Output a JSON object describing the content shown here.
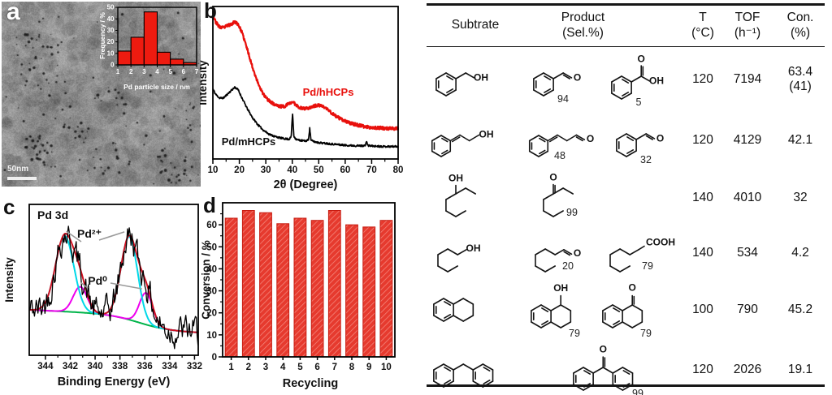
{
  "panels": {
    "a": "a",
    "b": "b",
    "c": "c",
    "d": "d",
    "scale_bar": "50nm"
  },
  "chart_data": [
    {
      "id": "pd-particle-size-distribution",
      "type": "bar",
      "location": "inset of panel a",
      "xlabel": "Pd particle size / nm",
      "ylabel": "Frequency / %",
      "bins": [
        "1-2",
        "2-3",
        "3-4",
        "4-5",
        "5-6",
        "6-7"
      ],
      "values": [
        12,
        24,
        46,
        11,
        5,
        2
      ],
      "xticks": [
        1,
        2,
        3,
        4,
        5,
        6,
        7
      ],
      "yticks": [
        0,
        10,
        20,
        30,
        40,
        50
      ],
      "ylim": [
        0,
        50
      ],
      "bar_color": "#ee1b10"
    },
    {
      "id": "xrd-patterns",
      "type": "line",
      "xlabel": "2θ (Degree)",
      "ylabel": "Intensity",
      "xlim": [
        10,
        80
      ],
      "xticks": [
        10,
        20,
        30,
        40,
        50,
        60,
        70,
        80
      ],
      "series": [
        {
          "name": "Pd/hHCPs",
          "color": "#e8100c",
          "features": "broad hump ~19°, weak broad Pd peaks ~40° and ~47-52°"
        },
        {
          "name": "Pd/mHCPs",
          "color": "#000000",
          "features": "broad hump ~19°, sharp peaks at 40.1°, 46.6°, 68.1°"
        }
      ]
    },
    {
      "id": "xps-pd3d",
      "type": "line",
      "title": "Pd 3d",
      "xlabel": "Binding Energy (eV)",
      "ylabel": "Intensity",
      "x_reversed": true,
      "xlim": [
        345.3,
        331.7
      ],
      "xticks": [
        344,
        342,
        340,
        338,
        336,
        334,
        332
      ],
      "annotations": [
        "Pd²⁺",
        "Pd⁰"
      ],
      "components": [
        {
          "assignment": "Pd2+ 3d3/2",
          "center_eV": 342.45,
          "amp": 0.5,
          "width": 1.05,
          "color": "#00d8e8"
        },
        {
          "assignment": "Pd2+ 3d5/2",
          "center_eV": 337.25,
          "amp": 0.55,
          "width": 0.95,
          "color": "#00d8e8"
        },
        {
          "assignment": "Pd0 3d3/2",
          "center_eV": 341.2,
          "amp": 0.17,
          "width": 0.8,
          "color": "#ee00ee"
        },
        {
          "assignment": "Pd0 3d5/2",
          "center_eV": 335.9,
          "amp": 0.21,
          "width": 0.75,
          "color": "#ee00ee"
        }
      ],
      "curves": [
        "raw data (black)",
        "fit envelope (red)",
        "Pd2+ components (cyan)",
        "Pd0 components (magenta)",
        "background (green)"
      ],
      "colors": {
        "raw": "#000000",
        "envelope": "#cf1020",
        "pd2": "#00d8e8",
        "pd0": "#ee00ee",
        "background": "#00b44a"
      }
    },
    {
      "id": "recycling-stability",
      "type": "bar",
      "xlabel": "Recycling",
      "ylabel": "Conversion / %",
      "categories": [
        "1",
        "2",
        "3",
        "4",
        "5",
        "6",
        "7",
        "8",
        "9",
        "10"
      ],
      "values": [
        63,
        66.5,
        65.5,
        60.5,
        63,
        62,
        66.5,
        60,
        59,
        62
      ],
      "yticks": [
        0,
        10,
        20,
        30,
        40,
        50,
        60
      ],
      "ylim": [
        0,
        70
      ],
      "bar_color": "#e63a2e"
    },
    {
      "id": "catalysis-table",
      "type": "table",
      "columns": [
        "Subtrate",
        "Product (Sel.%)",
        "T (°C)",
        "TOF (h⁻¹)",
        "Con. (%)"
      ],
      "rows": [
        [
          "benzyl alcohol",
          "benzaldehyde (94); benzoic acid (5)",
          "120",
          "7194",
          "63.4 (41)"
        ],
        [
          "cinnamyl alcohol",
          "cinnamaldehyde (48); benzaldehyde (32)",
          "120",
          "4129",
          "42.1"
        ],
        [
          "octan-3-ol",
          "octan-3-one (99)",
          "140",
          "4010",
          "32"
        ],
        [
          "octan-1-ol",
          "octanal (20); octanoic acid (79)",
          "140",
          "534",
          "4.2"
        ],
        [
          "tetralin",
          "1-tetralol (79); 1-tetralone (79)",
          "100",
          "790",
          "45.2"
        ],
        [
          "diphenylmethane",
          "benzophenone (99)",
          "120",
          "2026",
          "19.1"
        ]
      ]
    }
  ],
  "table": {
    "headers": [
      [
        "Subtrate"
      ],
      [
        "Product",
        "(Sel.%)"
      ],
      [
        "T",
        "(°C)"
      ],
      [
        "TOF",
        "(h⁻¹)"
      ],
      [
        "Con.",
        "(%)"
      ]
    ],
    "atom_labels": {
      "OH": "OH",
      "O": "O",
      "COOH": "COOH"
    },
    "rows": [
      {
        "substrate": "benzyl-alcohol",
        "products": [
          {
            "mol": "benzaldehyde",
            "sel": "94"
          },
          {
            "mol": "benzoic-acid",
            "sel": "5"
          }
        ],
        "T": "120",
        "TOF": "7194",
        "con": [
          "63.4",
          "(41)"
        ]
      },
      {
        "substrate": "cinnamyl-alcohol",
        "products": [
          {
            "mol": "cinnamaldehyde",
            "sel": "48"
          },
          {
            "mol": "benzaldehyde",
            "sel": "32"
          }
        ],
        "T": "120",
        "TOF": "4129",
        "con": [
          "42.1"
        ]
      },
      {
        "substrate": "octan-3-ol",
        "products": [
          {
            "mol": "octan-3-one",
            "sel": "99"
          }
        ],
        "T": "140",
        "TOF": "4010",
        "con": [
          "32"
        ]
      },
      {
        "substrate": "octan-1-ol",
        "products": [
          {
            "mol": "octanal",
            "sel": "20"
          },
          {
            "mol": "octanoic-acid",
            "sel": "79"
          }
        ],
        "T": "140",
        "TOF": "534",
        "con": [
          "4.2"
        ]
      },
      {
        "substrate": "tetralin",
        "products": [
          {
            "mol": "tetralol",
            "sel": "79"
          },
          {
            "mol": "tetralone",
            "sel": "79"
          }
        ],
        "T": "100",
        "TOF": "790",
        "con": [
          "45.2"
        ]
      },
      {
        "substrate": "diphenylmethane",
        "products": [
          {
            "mol": "benzophenone",
            "sel": "99"
          }
        ],
        "align": "center",
        "T": "120",
        "TOF": "2026",
        "con": [
          "19.1"
        ]
      }
    ]
  }
}
